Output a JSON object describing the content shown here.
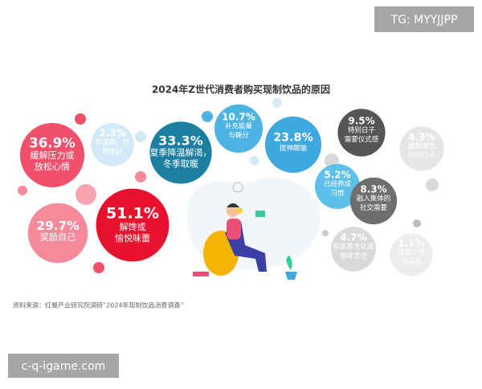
{
  "watermark_top": "TG: MYYJJPP",
  "watermark_bottom": "c-q-igame.com",
  "chart_data": {
    "type": "bubble",
    "title": "2024年Z世代消费者购买现制饮品的原因",
    "source": "资料来源：红餐产业研究院调研“2024年现制饮品消费调查”",
    "categories": [
      [
        "缓解压力或",
        "放松心情"
      ],
      [
        "包装酷，有",
        "颜值好"
      ],
      [
        "夏季降温解渴，",
        "冬季取暖"
      ],
      [
        "补充能量",
        "与糖分"
      ],
      [
        "提神醒脑"
      ],
      [
        "特别日子",
        "需要仪式感"
      ],
      [
        "紧跟潮流",
        "拍照打卡"
      ],
      [
        "已经养成",
        "习惯"
      ],
      [
        "融入集体的",
        "社交需要"
      ],
      [
        "探索茶文化或",
        "咖啡文化"
      ],
      [
        "体现个性",
        "与品味"
      ],
      [
        "奖励自己"
      ],
      [
        "解馋或",
        "愉悦味蕾"
      ]
    ],
    "values": [
      36.9,
      2.3,
      33.3,
      10.7,
      23.8,
      9.5,
      4.3,
      5.2,
      8.3,
      4.7,
      1.1,
      29.7,
      51.1
    ],
    "value_labels": [
      "36.9%",
      "2.3%",
      "33.3%",
      "10.7%",
      "23.8%",
      "9.5%",
      "4.3%",
      "5.2%",
      "8.3%",
      "4.7%",
      "1.1%",
      "29.7%",
      "51.1%"
    ],
    "colors": [
      "#f0506a",
      "#d3eaf6",
      "#1c7fa1",
      "#4cb3e3",
      "#3fa8df",
      "#555555",
      "#e6e6e6",
      "#5cc0ea",
      "#6e6e6e",
      "#d9d9d9",
      "#ececec",
      "#f58a9b",
      "#e8122e"
    ]
  }
}
